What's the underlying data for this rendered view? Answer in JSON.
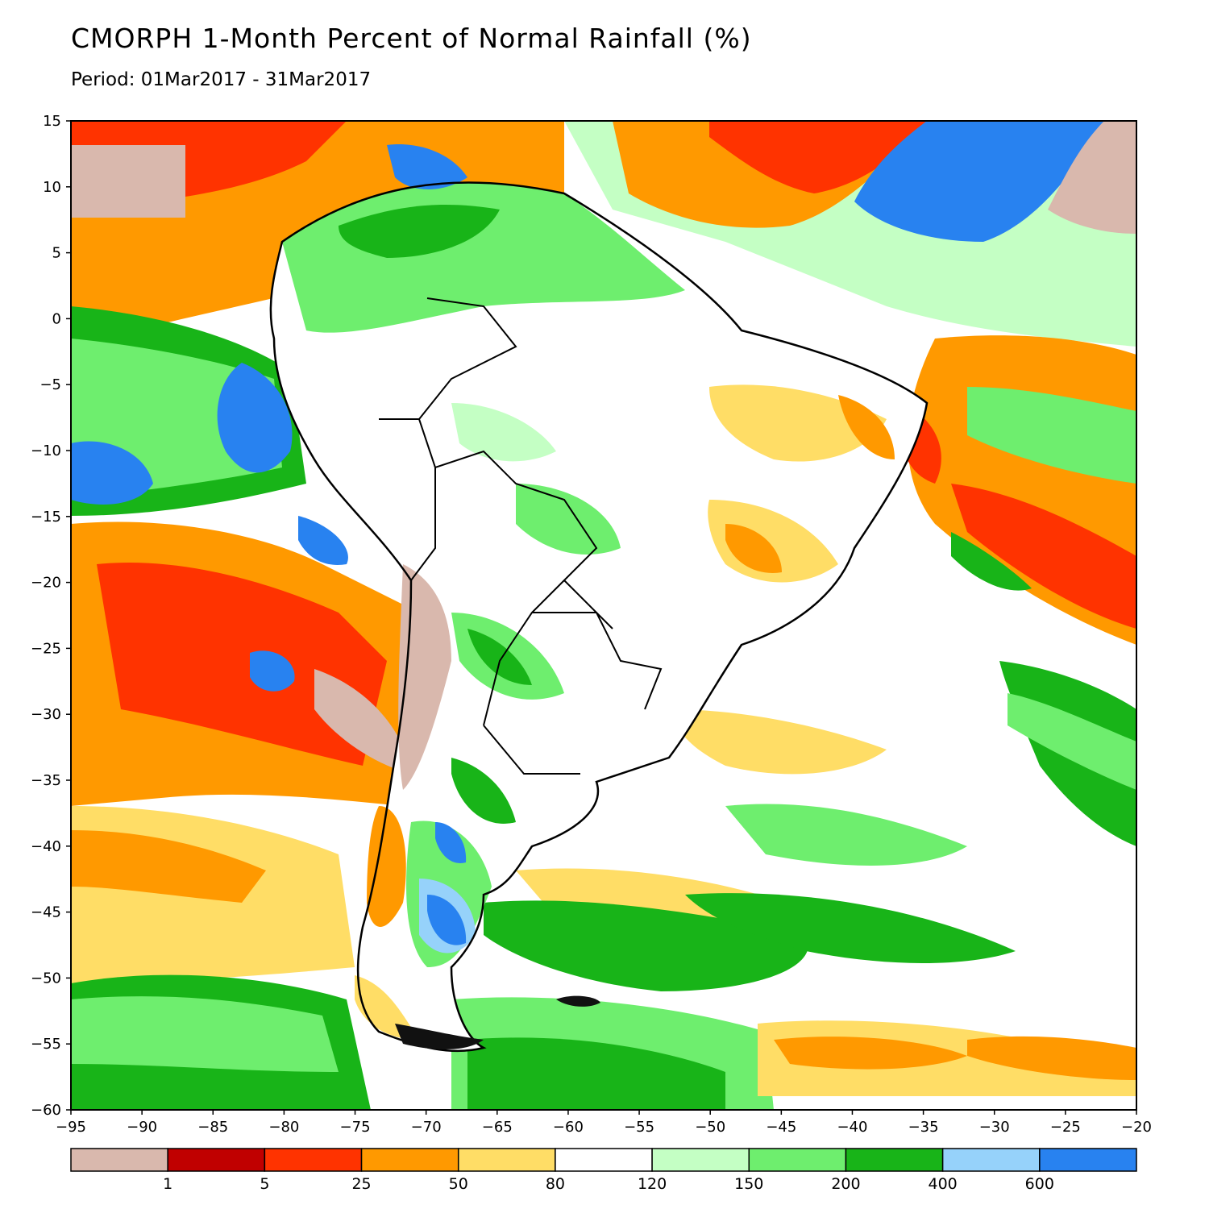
{
  "title": "CMORPH 1-Month Percent of Normal Rainfall (%)",
  "subtitle": "Period: 01Mar2017 - 31Mar2017",
  "map": {
    "lon_range": [
      -95,
      -20
    ],
    "lat_range": [
      -60,
      15
    ],
    "lon_ticks": [
      -95,
      -90,
      -85,
      -80,
      -75,
      -70,
      -65,
      -60,
      -55,
      -50,
      -45,
      -40,
      -35,
      -30,
      -25,
      -20
    ],
    "lat_ticks": [
      15,
      10,
      5,
      0,
      -5,
      -10,
      -15,
      -20,
      -25,
      -30,
      -35,
      -40,
      -45,
      -50,
      -55,
      -60
    ],
    "lon_tick_labels": [
      "−95",
      "−90",
      "−85",
      "−80",
      "−75",
      "−70",
      "−65",
      "−60",
      "−55",
      "−50",
      "−45",
      "−40",
      "−35",
      "−30",
      "−25",
      "−20"
    ],
    "lat_tick_labels": [
      "15",
      "10",
      "5",
      "0",
      "−5",
      "−10",
      "−15",
      "−20",
      "−25",
      "−30",
      "−35",
      "−40",
      "−45",
      "−50",
      "−55",
      "−60"
    ]
  },
  "colorbar": {
    "colors": [
      "#d9b8ad",
      "#c00000",
      "#ff3300",
      "#ff9900",
      "#ffdd66",
      "#ffffff",
      "#c4ffc4",
      "#6eee6e",
      "#18b418",
      "#96d2fa",
      "#2882f0"
    ],
    "labels": [
      "1",
      "5",
      "25",
      "50",
      "80",
      "120",
      "150",
      "200",
      "400",
      "600"
    ]
  }
}
